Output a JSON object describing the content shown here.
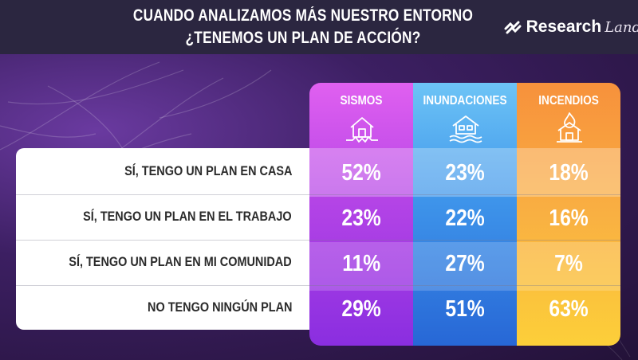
{
  "header": {
    "title_line1": "CUANDO ANALIZAMOS MÁS NUESTRO ENTORNO",
    "title_line2": "¿TENEMOS UN PLAN DE ACCIÓN?",
    "logo_text": "Research",
    "logo_script": "Land"
  },
  "colors": {
    "sismos": "#b444e6",
    "inundaciones": "#3e94ea",
    "incendios": "#f9a83f"
  },
  "chart_data": {
    "type": "table",
    "title": "CUANDO ANALIZAMOS MÁS NUESTRO ENTORNO ¿TENEMOS UN PLAN DE ACCIÓN?",
    "columns": [
      {
        "label": "SISMOS",
        "icon": "earthquake-house-icon"
      },
      {
        "label": "INUNDACIONES",
        "icon": "flood-house-icon"
      },
      {
        "label": "INCENDIOS",
        "icon": "fire-house-icon"
      }
    ],
    "rows": [
      {
        "label": "SÍ, TENGO UN PLAN EN CASA",
        "values": [
          "52%",
          "23%",
          "18%"
        ]
      },
      {
        "label": "SÍ, TENGO UN PLAN EN EL TRABAJO",
        "values": [
          "23%",
          "22%",
          "16%"
        ]
      },
      {
        "label": "SÍ, TENGO UN PLAN EN MI COMUNIDAD",
        "values": [
          "11%",
          "27%",
          "7%"
        ]
      },
      {
        "label": "NO TENGO NINGÚN PLAN",
        "values": [
          "29%",
          "51%",
          "63%"
        ]
      }
    ]
  }
}
